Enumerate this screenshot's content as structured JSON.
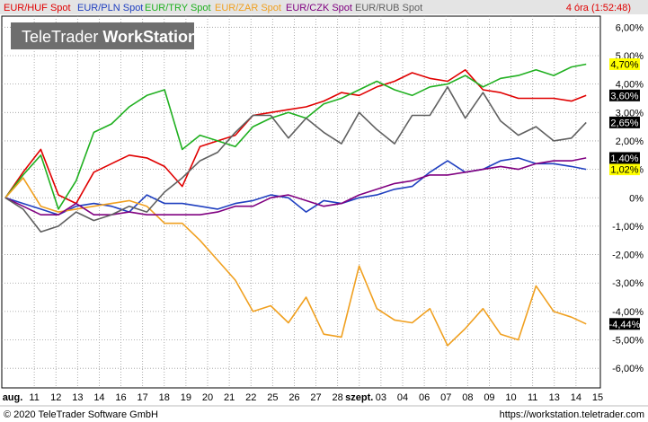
{
  "legend": [
    {
      "name": "EUR/HUF Spot",
      "color": "#e00000"
    },
    {
      "name": "EUR/PLN Spot",
      "color": "#2040c0"
    },
    {
      "name": "EUR/TRY Spot",
      "color": "#20b020"
    },
    {
      "name": "EUR/ZAR Spot",
      "color": "#f0a020"
    },
    {
      "name": "EUR/CZK Spot",
      "color": "#800080"
    },
    {
      "name": "EUR/RUB Spot",
      "color": "#606060"
    }
  ],
  "time_label": "4 óra (1:52:48)",
  "watermark": {
    "part1": "TeleTrader ",
    "part2": "WorkStation"
  },
  "footer": {
    "left": "© 2020 TeleTrader Software GmbH",
    "right": "https://workstation.teletrader.com"
  },
  "chart_data": {
    "type": "line",
    "x_tick_labels": [
      "aug.",
      "11",
      "12",
      "13",
      "14",
      "16",
      "17",
      "18",
      "19",
      "20",
      "21",
      "22",
      "25",
      "26",
      "27",
      "28",
      "szept.",
      "03",
      "04",
      "06",
      "07",
      "08",
      "09",
      "10",
      "11",
      "13",
      "14",
      "15"
    ],
    "y_tick_labels": [
      "6,00%",
      "5,00%",
      "4,00%",
      "3,00%",
      "2,00%",
      "1,00%",
      "0%",
      "-1,00%",
      "-2,00%",
      "-3,00%",
      "-4,00%",
      "-5,00%",
      "-6,00%"
    ],
    "ylim": [
      -6.5,
      6.2
    ],
    "xlim": [
      0,
      100
    ],
    "grid": true,
    "series": [
      {
        "name": "EUR/HUF Spot",
        "color": "#e00000",
        "last_label": "3,60%",
        "x": [
          0,
          3,
          6,
          9,
          12,
          15,
          18,
          21,
          24,
          27,
          30,
          33,
          36,
          39,
          42,
          45,
          48,
          51,
          54,
          57,
          60,
          63,
          66,
          69,
          72,
          75,
          78,
          81,
          84,
          87,
          90,
          93,
          96,
          98.5
        ],
        "y": [
          0,
          0.9,
          1.7,
          0.1,
          -0.2,
          0.9,
          1.2,
          1.5,
          1.4,
          1.1,
          0.4,
          1.8,
          2.0,
          2.2,
          2.9,
          3.0,
          3.1,
          3.2,
          3.4,
          3.7,
          3.6,
          3.9,
          4.1,
          4.4,
          4.2,
          4.1,
          4.5,
          3.8,
          3.7,
          3.5,
          3.5,
          3.5,
          3.4,
          3.6
        ]
      },
      {
        "name": "EUR/PLN Spot",
        "color": "#2040c0",
        "last_label": "1,02%",
        "x": [
          0,
          3,
          6,
          9,
          12,
          15,
          18,
          21,
          24,
          27,
          30,
          33,
          36,
          39,
          42,
          45,
          48,
          51,
          54,
          57,
          60,
          63,
          66,
          69,
          72,
          75,
          78,
          81,
          84,
          87,
          90,
          93,
          96,
          98.5
        ],
        "y": [
          0,
          -0.2,
          -0.4,
          -0.6,
          -0.3,
          -0.2,
          -0.3,
          -0.5,
          0.1,
          -0.2,
          -0.2,
          -0.3,
          -0.4,
          -0.2,
          -0.1,
          0.1,
          0.0,
          -0.5,
          -0.1,
          -0.2,
          0.0,
          0.1,
          0.3,
          0.4,
          0.9,
          1.3,
          0.9,
          1.0,
          1.3,
          1.4,
          1.2,
          1.2,
          1.1,
          1.0
        ]
      },
      {
        "name": "EUR/TRY Spot",
        "color": "#20b020",
        "last_label": "4,70%",
        "x": [
          0,
          3,
          6,
          9,
          12,
          15,
          18,
          21,
          24,
          27,
          30,
          33,
          36,
          39,
          42,
          45,
          48,
          51,
          54,
          57,
          60,
          63,
          66,
          69,
          72,
          75,
          78,
          81,
          84,
          87,
          90,
          93,
          96,
          98.5
        ],
        "y": [
          0,
          0.8,
          1.5,
          -0.4,
          0.6,
          2.3,
          2.6,
          3.2,
          3.6,
          3.8,
          1.7,
          2.2,
          2.0,
          1.8,
          2.5,
          2.8,
          3.0,
          2.8,
          3.3,
          3.5,
          3.8,
          4.1,
          3.8,
          3.6,
          3.9,
          4.0,
          4.3,
          3.9,
          4.2,
          4.3,
          4.5,
          4.3,
          4.6,
          4.7
        ]
      },
      {
        "name": "EUR/ZAR Spot",
        "color": "#f0a020",
        "last_label": "-4,44%",
        "x": [
          0,
          3,
          6,
          9,
          12,
          15,
          18,
          21,
          24,
          27,
          30,
          33,
          36,
          39,
          42,
          45,
          48,
          51,
          54,
          57,
          60,
          63,
          66,
          69,
          72,
          75,
          78,
          81,
          84,
          87,
          90,
          93,
          96,
          98.5
        ],
        "y": [
          0,
          0.7,
          -0.3,
          -0.5,
          -0.4,
          -0.3,
          -0.2,
          -0.1,
          -0.3,
          -0.9,
          -0.9,
          -1.5,
          -2.2,
          -2.9,
          -4.0,
          -3.8,
          -4.4,
          -3.5,
          -4.8,
          -4.9,
          -2.4,
          -3.9,
          -4.3,
          -4.4,
          -3.9,
          -5.2,
          -4.6,
          -3.9,
          -4.8,
          -5.0,
          -3.1,
          -4.0,
          -4.2,
          -4.44
        ]
      },
      {
        "name": "EUR/CZK Spot",
        "color": "#800080",
        "last_label": "1,40%",
        "x": [
          0,
          3,
          6,
          9,
          12,
          15,
          18,
          21,
          24,
          27,
          30,
          33,
          36,
          39,
          42,
          45,
          48,
          51,
          54,
          57,
          60,
          63,
          66,
          69,
          72,
          75,
          78,
          81,
          84,
          87,
          90,
          93,
          96,
          98.5
        ],
        "y": [
          0,
          -0.3,
          -0.6,
          -0.6,
          -0.2,
          -0.6,
          -0.6,
          -0.5,
          -0.6,
          -0.6,
          -0.6,
          -0.6,
          -0.5,
          -0.3,
          -0.3,
          0.0,
          0.1,
          -0.1,
          -0.3,
          -0.2,
          0.1,
          0.3,
          0.5,
          0.6,
          0.8,
          0.8,
          0.9,
          1.0,
          1.1,
          1.0,
          1.2,
          1.3,
          1.3,
          1.4
        ]
      },
      {
        "name": "EUR/RUB Spot",
        "color": "#606060",
        "last_label": "2,65%",
        "x": [
          0,
          3,
          6,
          9,
          12,
          15,
          18,
          21,
          24,
          27,
          30,
          33,
          36,
          39,
          42,
          45,
          48,
          51,
          54,
          57,
          60,
          63,
          66,
          69,
          72,
          75,
          78,
          81,
          84,
          87,
          90,
          93,
          96,
          98.5
        ],
        "y": [
          0,
          -0.4,
          -1.2,
          -1.0,
          -0.5,
          -0.8,
          -0.6,
          -0.3,
          -0.5,
          0.2,
          0.7,
          1.3,
          1.6,
          2.3,
          2.9,
          2.9,
          2.1,
          2.8,
          2.3,
          1.9,
          3.0,
          2.4,
          1.9,
          2.9,
          2.9,
          3.9,
          2.8,
          3.7,
          2.7,
          2.2,
          2.5,
          2.0,
          2.1,
          2.65
        ]
      }
    ]
  }
}
